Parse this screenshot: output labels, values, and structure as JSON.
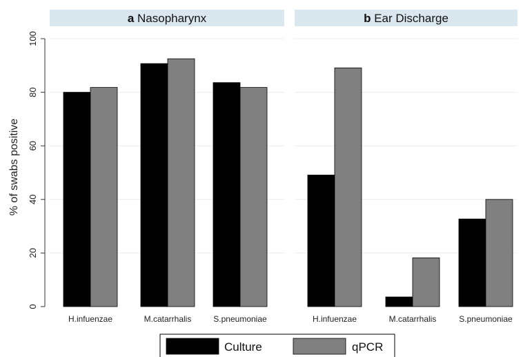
{
  "chart_data": {
    "type": "bar",
    "ylabel": "% of swabs positive",
    "ylim": [
      0,
      100
    ],
    "yticks": [
      0,
      20,
      40,
      60,
      80,
      100
    ],
    "grid": true,
    "legend_position": "bottom",
    "colors": {
      "Culture": "#000000",
      "qPCR": "#808080",
      "header": "#dbe7ef",
      "grid": "#e8edf1"
    },
    "panels": [
      {
        "letter": "a",
        "title": "Nasopharynx",
        "categories": [
          "H.infuenzae",
          "M.catarrhalis",
          "S.pneumoniae"
        ],
        "series": [
          {
            "name": "Culture",
            "values": [
              80,
              90.7,
              83.6
            ]
          },
          {
            "name": "qPCR",
            "values": [
              81.8,
              92.5,
              81.8
            ]
          }
        ]
      },
      {
        "letter": "b",
        "title": "Ear Discharge",
        "categories": [
          "H.infuenzae",
          "M.catarrhalis",
          "S.pneumoniae"
        ],
        "series": [
          {
            "name": "Culture",
            "values": [
              49.1,
              3.6,
              32.7
            ]
          },
          {
            "name": "qPCR",
            "values": [
              89.1,
              18.2,
              40
            ]
          }
        ]
      }
    ],
    "legend": [
      "Culture",
      "qPCR"
    ]
  }
}
